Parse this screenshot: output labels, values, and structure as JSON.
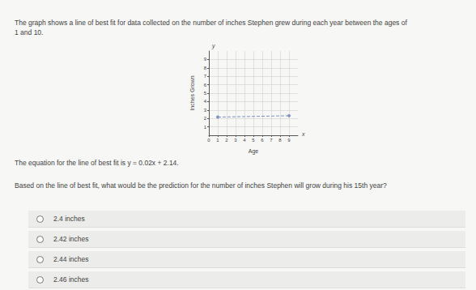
{
  "question": {
    "intro": [
      "The graph shows a line of best fit for data collected on the number of inches Stephen grew during each year between the ages of",
      "1 and 10."
    ],
    "equation": "The equation for the line of best fit is y = 0.02x + 2.14.",
    "prompt": "Based on the line of best fit, what would be the prediction for the number of inches Stephen will grow during his 15th year?",
    "options": [
      "2.4 inches",
      "2.42 inches",
      "2.44 inches",
      "2.46 inches"
    ]
  },
  "axis_arrows": {
    "x": "x",
    "y": "y"
  },
  "chart_data": {
    "type": "line",
    "x_label": "Age",
    "y_label": "Inches Grown",
    "x": [
      1,
      9
    ],
    "values": [
      2.16,
      2.32
    ],
    "color": "#7f93c5",
    "line_style": "dashed",
    "xlim": [
      0,
      10
    ],
    "xticks": [
      0,
      1,
      2,
      3,
      4,
      5,
      6,
      7,
      8,
      9
    ],
    "ylim": [
      0,
      10
    ],
    "yticks": [
      1,
      2,
      3,
      4,
      5,
      6,
      7,
      8,
      9
    ],
    "grid": true
  }
}
